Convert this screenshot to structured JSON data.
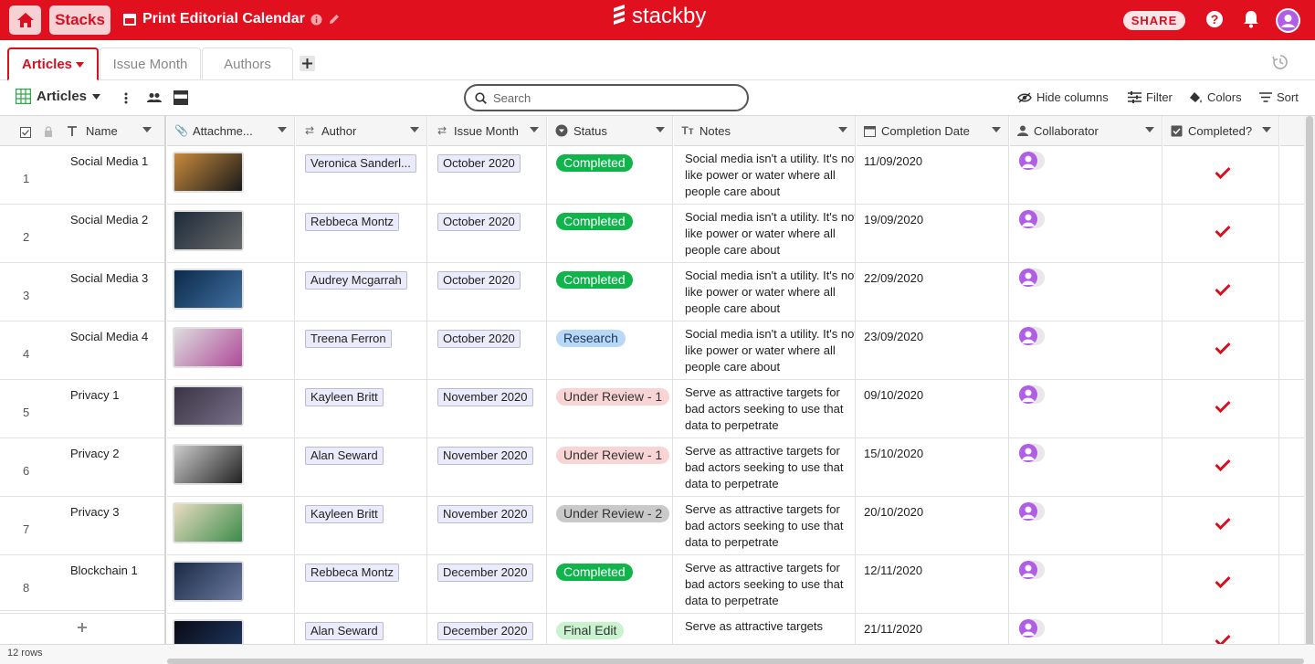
{
  "header": {
    "stacks_label": "Stacks",
    "doc_title": "Print Editorial Calendar",
    "brand": "stackby",
    "share_label": "SHARE"
  },
  "tabs": [
    {
      "label": "Articles",
      "active": true
    },
    {
      "label": "Issue Month",
      "active": false
    },
    {
      "label": "Authors",
      "active": false
    }
  ],
  "toolbar": {
    "view_name": "Articles",
    "search_placeholder": "Search",
    "hide_columns": "Hide columns",
    "filter": "Filter",
    "colors": "Colors",
    "sort": "Sort"
  },
  "columns": [
    "Name",
    "Attachme...",
    "Author",
    "Issue Month",
    "Status",
    "Notes",
    "Completion Date",
    "Collaborator",
    "Completed?"
  ],
  "status_colors": {
    "Completed": {
      "bg": "#0fb44a",
      "fg": "#ffffff"
    },
    "Research": {
      "bg": "#b7d8f7",
      "fg": "#1d3557"
    },
    "Under Review - 1": {
      "bg": "#f9d4d4",
      "fg": "#333333"
    },
    "Under Review - 2": {
      "bg": "#c9c9c9",
      "fg": "#333333"
    },
    "Final Edit": {
      "bg": "#c9f2cf",
      "fg": "#333333"
    }
  },
  "rows": [
    {
      "num": "1",
      "name": "Social Media 1",
      "author": "Veronica Sanderl...",
      "month": "October 2020",
      "status": "Completed",
      "notes": "Social media isn't a utility. It's not like power or water where all people care about",
      "date": "11/09/2020",
      "completed": true
    },
    {
      "num": "2",
      "name": "Social Media 2",
      "author": "Rebbeca Montz",
      "month": "October 2020",
      "status": "Completed",
      "notes": "Social media isn't a utility. It's not like power or water where all people care about",
      "date": "19/09/2020",
      "completed": true
    },
    {
      "num": "3",
      "name": "Social Media 3",
      "author": "Audrey Mcgarrah",
      "month": "October 2020",
      "status": "Completed",
      "notes": "Social media isn't a utility. It's not like power or water where all people care about",
      "date": "22/09/2020",
      "completed": true
    },
    {
      "num": "4",
      "name": "Social Media 4",
      "author": "Treena Ferron",
      "month": "October 2020",
      "status": "Research",
      "notes": "Social media isn't a utility. It's not like power or water where all people care about",
      "date": "23/09/2020",
      "completed": true
    },
    {
      "num": "5",
      "name": "Privacy 1",
      "author": "Kayleen Britt",
      "month": "November 2020",
      "status": "Under Review - 1",
      "notes": "Serve as attractive targets for bad actors seeking to use that data to perpetrate",
      "date": "09/10/2020",
      "completed": true
    },
    {
      "num": "6",
      "name": "Privacy 2",
      "author": "Alan Seward",
      "month": "November 2020",
      "status": "Under Review - 1",
      "notes": "Serve as attractive targets for bad actors seeking to use that data to perpetrate",
      "date": "15/10/2020",
      "completed": true
    },
    {
      "num": "7",
      "name": "Privacy 3",
      "author": "Kayleen Britt",
      "month": "November 2020",
      "status": "Under Review - 2",
      "notes": "Serve as attractive targets for bad actors seeking to use that data to perpetrate",
      "date": "20/10/2020",
      "completed": true
    },
    {
      "num": "8",
      "name": "Blockchain 1",
      "author": "Rebbeca Montz",
      "month": "December 2020",
      "status": "Completed",
      "notes": "Serve as attractive targets for bad actors seeking to use that data to perpetrate",
      "date": "12/11/2020",
      "completed": true
    },
    {
      "num": "",
      "name": "",
      "author": "Alan Seward",
      "month": "December 2020",
      "status": "Final Edit",
      "notes": "Serve as attractive targets",
      "date": "21/11/2020",
      "completed": true
    }
  ],
  "footer": {
    "row_count": "12 rows"
  }
}
